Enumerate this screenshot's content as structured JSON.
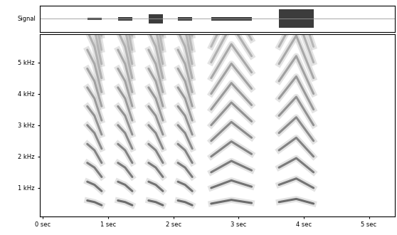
{
  "chart_data": {
    "type": "spectrogram",
    "signal": {
      "label": "Signal",
      "ylim": [
        -1,
        1
      ]
    },
    "xlim": [
      -0.05,
      5.4
    ],
    "xticks": [
      {
        "value": 0,
        "label": "0 sec"
      },
      {
        "value": 1,
        "label": "1 sec"
      },
      {
        "value": 2,
        "label": "2 sec"
      },
      {
        "value": 3,
        "label": "3 sec"
      },
      {
        "value": 4,
        "label": "4 sec"
      },
      {
        "value": 5,
        "label": "5 sec"
      }
    ],
    "ylim": [
      0.1,
      5.9
    ],
    "yticks": [
      {
        "value": 1,
        "label": "1 kHz"
      },
      {
        "value": 2,
        "label": "2 kHz"
      },
      {
        "value": 3,
        "label": "3 kHz"
      },
      {
        "value": 4,
        "label": "4 kHz"
      },
      {
        "value": 5,
        "label": "5 kHz"
      }
    ],
    "color": "#3c3c3c",
    "syllables": [
      {
        "start": 0.68,
        "end": 0.9,
        "f0_start": 0.6,
        "f0_mid": 0.55,
        "f0_end": 0.45,
        "amplitude": 0.1
      },
      {
        "start": 1.15,
        "end": 1.37,
        "f0_start": 0.6,
        "f0_mid": 0.55,
        "f0_end": 0.45,
        "amplitude": 0.15
      },
      {
        "start": 1.62,
        "end": 1.84,
        "f0_start": 0.6,
        "f0_mid": 0.55,
        "f0_end": 0.45,
        "amplitude": 0.35
      },
      {
        "start": 2.07,
        "end": 2.29,
        "f0_start": 0.6,
        "f0_mid": 0.55,
        "f0_end": 0.45,
        "amplitude": 0.15
      },
      {
        "start": 2.58,
        "end": 3.2,
        "f0_start": 0.5,
        "f0_mid": 0.62,
        "f0_end": 0.52,
        "amplitude": 0.15
      },
      {
        "start": 3.62,
        "end": 4.15,
        "f0_start": 0.55,
        "f0_mid": 0.65,
        "f0_end": 0.5,
        "amplitude": 0.7
      }
    ]
  }
}
